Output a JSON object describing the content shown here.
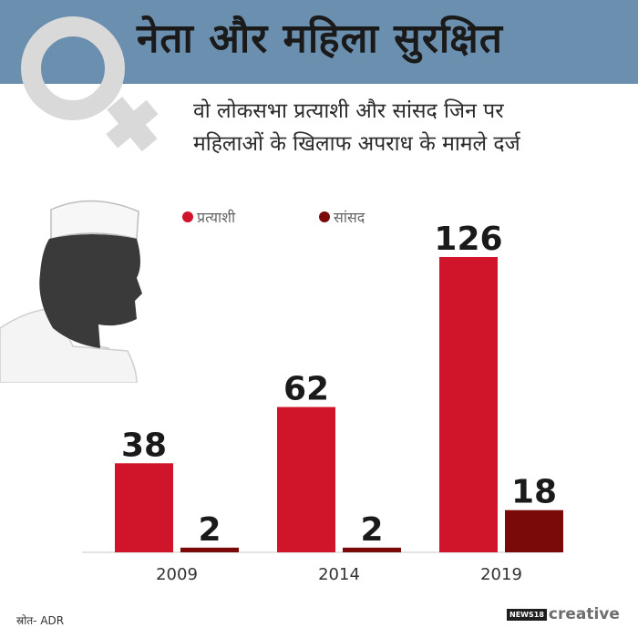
{
  "title": "नेता और महिला सुरक्षित",
  "subtitle": {
    "line1": "वो लोकसभा प्रत्याशी और सांसद जिन पर",
    "line2": "महिलाओं के खिलाफ अपराध के मामले दर्ज"
  },
  "source": "स्रोत- ADR",
  "brand": {
    "box": "NEWS18",
    "text": "creative"
  },
  "colors": {
    "header": "#6b8fae",
    "candidates": "#d0152a",
    "mps": "#7a0a0a",
    "symbol": "#d9d9d9"
  },
  "chart_data": {
    "type": "bar",
    "categories": [
      "2009",
      "2014",
      "2019"
    ],
    "series": [
      {
        "name": "प्रत्याशी",
        "values": [
          38,
          62,
          126
        ]
      },
      {
        "name": "सांसद",
        "values": [
          2,
          2,
          18
        ]
      }
    ],
    "ylim": [
      0,
      140
    ],
    "legend_position": "top",
    "grid": false
  }
}
